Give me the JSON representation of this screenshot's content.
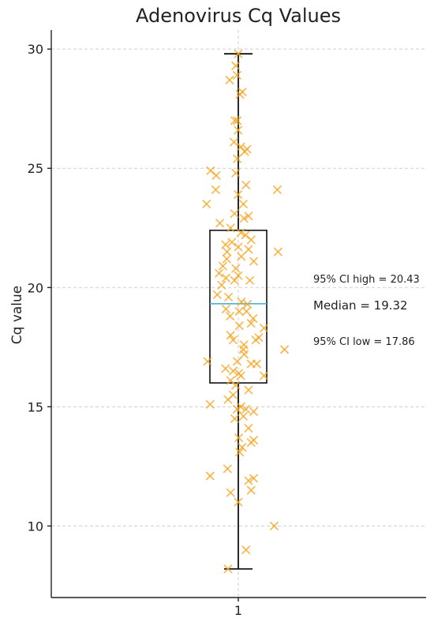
{
  "chart_data": {
    "type": "box",
    "title": "Adenovirus Cq Values",
    "xlabel": "",
    "ylabel": "Cq value",
    "ylim": [
      7.0,
      30.8
    ],
    "yticks": [
      10,
      15,
      20,
      25,
      30
    ],
    "categories": [
      "1"
    ],
    "grid": true,
    "box": {
      "min": 8.2,
      "q1": 16.0,
      "median": 19.32,
      "q3": 22.4,
      "max": 29.8
    },
    "annotations": [
      {
        "text": "95% CI high = 20.43"
      },
      {
        "text": "Median = 19.32"
      },
      {
        "text": "95% CI low = 17.86"
      }
    ],
    "points": [
      {
        "x": 1.0,
        "y": 29.8
      },
      {
        "x": 0.99,
        "y": 29.3
      },
      {
        "x": 0.966,
        "y": 28.7
      },
      {
        "x": 0.995,
        "y": 28.9
      },
      {
        "x": 1.006,
        "y": 28.1
      },
      {
        "x": 1.016,
        "y": 28.2
      },
      {
        "x": 0.986,
        "y": 27.0
      },
      {
        "x": 0.996,
        "y": 27.0
      },
      {
        "x": 0.999,
        "y": 26.6
      },
      {
        "x": 0.983,
        "y": 26.1
      },
      {
        "x": 1.01,
        "y": 25.9
      },
      {
        "x": 1.034,
        "y": 25.8
      },
      {
        "x": 1.025,
        "y": 25.7
      },
      {
        "x": 0.996,
        "y": 25.4
      },
      {
        "x": 0.892,
        "y": 24.9
      },
      {
        "x": 0.914,
        "y": 24.7
      },
      {
        "x": 0.99,
        "y": 24.8
      },
      {
        "x": 1.03,
        "y": 24.3
      },
      {
        "x": 1.152,
        "y": 24.1
      },
      {
        "x": 0.912,
        "y": 24.1
      },
      {
        "x": 0.999,
        "y": 23.9
      },
      {
        "x": 0.876,
        "y": 23.5
      },
      {
        "x": 1.02,
        "y": 23.5
      },
      {
        "x": 0.985,
        "y": 23.1
      },
      {
        "x": 1.04,
        "y": 23.0
      },
      {
        "x": 1.022,
        "y": 22.9
      },
      {
        "x": 0.928,
        "y": 22.7
      },
      {
        "x": 0.97,
        "y": 22.5
      },
      {
        "x": 1.01,
        "y": 22.3
      },
      {
        "x": 1.028,
        "y": 22.2
      },
      {
        "x": 1.05,
        "y": 22.0
      },
      {
        "x": 0.95,
        "y": 21.8
      },
      {
        "x": 0.975,
        "y": 21.9
      },
      {
        "x": 1.0,
        "y": 21.7
      },
      {
        "x": 1.04,
        "y": 21.6
      },
      {
        "x": 0.956,
        "y": 21.5
      },
      {
        "x": 1.155,
        "y": 21.5
      },
      {
        "x": 1.012,
        "y": 21.3
      },
      {
        "x": 0.955,
        "y": 21.2
      },
      {
        "x": 1.06,
        "y": 21.1
      },
      {
        "x": 0.94,
        "y": 20.9
      },
      {
        "x": 0.99,
        "y": 20.8
      },
      {
        "x": 0.925,
        "y": 20.6
      },
      {
        "x": 1.0,
        "y": 20.5
      },
      {
        "x": 0.952,
        "y": 20.4
      },
      {
        "x": 0.985,
        "y": 20.3
      },
      {
        "x": 1.045,
        "y": 20.3
      },
      {
        "x": 0.935,
        "y": 20.1
      },
      {
        "x": 0.918,
        "y": 19.7
      },
      {
        "x": 0.962,
        "y": 19.6
      },
      {
        "x": 1.012,
        "y": 19.4
      },
      {
        "x": 1.036,
        "y": 19.3
      },
      {
        "x": 0.952,
        "y": 19.1
      },
      {
        "x": 1.003,
        "y": 19.0
      },
      {
        "x": 1.032,
        "y": 19.0
      },
      {
        "x": 0.968,
        "y": 18.8
      },
      {
        "x": 1.058,
        "y": 18.7
      },
      {
        "x": 1.05,
        "y": 18.5
      },
      {
        "x": 1.1,
        "y": 18.3
      },
      {
        "x": 1.004,
        "y": 18.4
      },
      {
        "x": 0.97,
        "y": 18.0
      },
      {
        "x": 0.98,
        "y": 17.8
      },
      {
        "x": 1.08,
        "y": 17.9
      },
      {
        "x": 1.068,
        "y": 17.8
      },
      {
        "x": 1.022,
        "y": 17.6
      },
      {
        "x": 1.02,
        "y": 17.4
      },
      {
        "x": 1.18,
        "y": 17.4
      },
      {
        "x": 1.023,
        "y": 17.2
      },
      {
        "x": 0.996,
        "y": 16.9
      },
      {
        "x": 0.88,
        "y": 16.9
      },
      {
        "x": 1.05,
        "y": 16.8
      },
      {
        "x": 1.072,
        "y": 16.8
      },
      {
        "x": 0.95,
        "y": 16.6
      },
      {
        "x": 0.98,
        "y": 16.5
      },
      {
        "x": 1.002,
        "y": 16.4
      },
      {
        "x": 1.01,
        "y": 16.3
      },
      {
        "x": 1.1,
        "y": 16.3
      },
      {
        "x": 0.97,
        "y": 16.1
      },
      {
        "x": 0.99,
        "y": 15.9
      },
      {
        "x": 1.04,
        "y": 15.7
      },
      {
        "x": 0.98,
        "y": 15.5
      },
      {
        "x": 0.96,
        "y": 15.3
      },
      {
        "x": 0.89,
        "y": 15.1
      },
      {
        "x": 1.01,
        "y": 15.0
      },
      {
        "x": 0.995,
        "y": 14.9
      },
      {
        "x": 1.03,
        "y": 14.9
      },
      {
        "x": 1.06,
        "y": 14.8
      },
      {
        "x": 1.02,
        "y": 14.6
      },
      {
        "x": 0.986,
        "y": 14.5
      },
      {
        "x": 1.04,
        "y": 14.1
      },
      {
        "x": 1.002,
        "y": 13.7
      },
      {
        "x": 1.06,
        "y": 13.6
      },
      {
        "x": 1.05,
        "y": 13.5
      },
      {
        "x": 1.015,
        "y": 13.3
      },
      {
        "x": 1.005,
        "y": 13.1
      },
      {
        "x": 0.958,
        "y": 12.4
      },
      {
        "x": 0.89,
        "y": 12.1
      },
      {
        "x": 1.06,
        "y": 12.0
      },
      {
        "x": 1.04,
        "y": 11.9
      },
      {
        "x": 1.05,
        "y": 11.5
      },
      {
        "x": 0.97,
        "y": 11.4
      },
      {
        "x": 1.0,
        "y": 11.0
      },
      {
        "x": 1.14,
        "y": 10.0
      },
      {
        "x": 1.03,
        "y": 9.0
      },
      {
        "x": 0.96,
        "y": 8.2
      }
    ],
    "colors": {
      "points": "#f5a623",
      "median": "#3fb6d6",
      "box": "#111111",
      "grid": "#cfcfcf"
    }
  }
}
